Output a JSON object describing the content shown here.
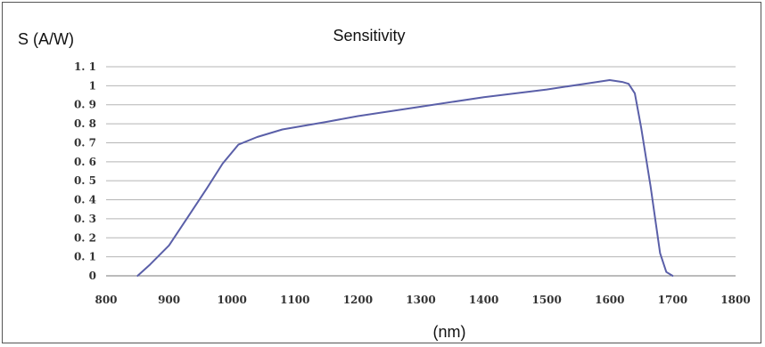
{
  "chart_data": {
    "type": "line",
    "title": "Sensitivity",
    "ylabel": "S (A/W)",
    "xlabel": "(nm)",
    "xlim": [
      800,
      1800
    ],
    "ylim": [
      0,
      1.1
    ],
    "x_ticks": [
      "800",
      "900",
      "1000",
      "1100",
      "1200",
      "1300",
      "1400",
      "1500",
      "1600",
      "1700",
      "1800"
    ],
    "y_ticks": [
      "0",
      "0. 1",
      "0. 2",
      "0. 3",
      "0. 4",
      "0. 5",
      "0. 6",
      "0. 7",
      "0. 8",
      "0. 9",
      "1",
      "1. 1"
    ],
    "grid": "horizontal",
    "series": [
      {
        "color": "#5a5fa8",
        "x": [
          850,
          870,
          900,
          930,
          960,
          985,
          1010,
          1040,
          1080,
          1150,
          1200,
          1260,
          1300,
          1400,
          1500,
          1560,
          1600,
          1620,
          1630,
          1640,
          1650,
          1665,
          1680,
          1690,
          1700
        ],
        "y": [
          0,
          0.06,
          0.16,
          0.31,
          0.46,
          0.59,
          0.69,
          0.73,
          0.77,
          0.81,
          0.84,
          0.87,
          0.89,
          0.94,
          0.98,
          1.01,
          1.03,
          1.02,
          1.01,
          0.96,
          0.78,
          0.47,
          0.12,
          0.02,
          0
        ]
      }
    ]
  }
}
